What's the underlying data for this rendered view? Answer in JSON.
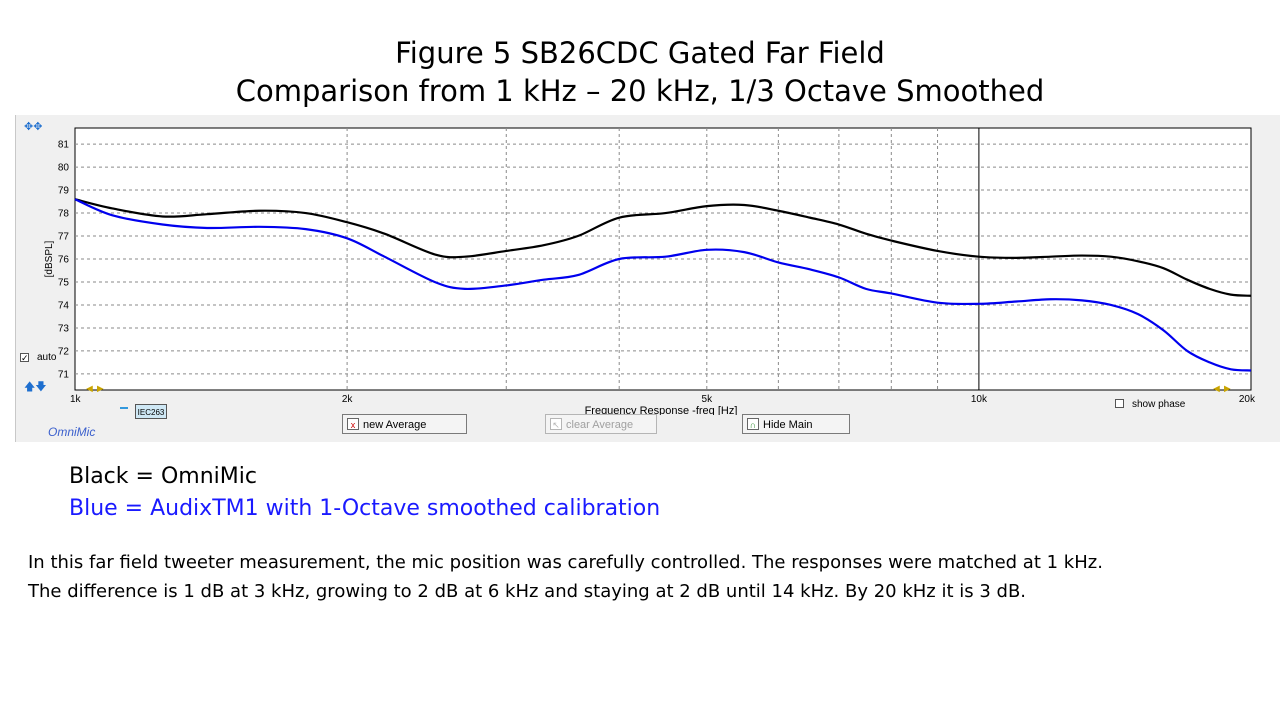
{
  "header": {
    "title_line1": "Figure 5   SB26CDC Gated Far Field",
    "title_line2": "Comparison from 1 kHz – 20 kHz, 1/3 Octave Smoothed"
  },
  "app": {
    "name": "OmniMic",
    "auto_label": "auto",
    "auto_checked": true,
    "show_phase_label": "show phase",
    "show_phase_checked": false,
    "channel_label": "IEC263",
    "buttons": {
      "new_average": "new Average",
      "clear_average": "clear Average",
      "hide_main": "Hide Main"
    }
  },
  "chart_data": {
    "type": "line",
    "xlabel": "Frequency Response -freq [Hz]",
    "ylabel": "[dBSPL]",
    "x_scale": "log",
    "xlim": [
      1000,
      20000
    ],
    "ylim": [
      70.3,
      81.7
    ],
    "x_ticks": [
      {
        "value": 1000,
        "label": "1k"
      },
      {
        "value": 2000,
        "label": "2k"
      },
      {
        "value": 5000,
        "label": "5k"
      },
      {
        "value": 10000,
        "label": "10k"
      },
      {
        "value": 20000,
        "label": "20k"
      }
    ],
    "y_ticks": [
      71,
      72,
      73,
      74,
      75,
      76,
      77,
      78,
      79,
      80,
      81
    ],
    "grid": true,
    "series": [
      {
        "color": "#000000",
        "x": [
          1000,
          1100,
          1250,
          1400,
          1600,
          1800,
          2000,
          2200,
          2500,
          2700,
          3000,
          3300,
          3600,
          4000,
          4500,
          5000,
          5500,
          6000,
          6500,
          7000,
          7500,
          8000,
          9000,
          10000,
          11000,
          12000,
          13000,
          14000,
          15000,
          16000,
          17000,
          18000,
          19000,
          20000
        ],
        "y": [
          78.6,
          78.2,
          77.85,
          77.95,
          78.1,
          78.0,
          77.6,
          77.1,
          76.2,
          76.1,
          76.35,
          76.6,
          77.0,
          77.8,
          78.0,
          78.3,
          78.35,
          78.1,
          77.8,
          77.5,
          77.1,
          76.8,
          76.35,
          76.1,
          76.05,
          76.1,
          76.15,
          76.1,
          75.9,
          75.6,
          75.1,
          74.7,
          74.45,
          74.4
        ]
      },
      {
        "color": "#0000ee",
        "x": [
          1000,
          1100,
          1250,
          1400,
          1600,
          1800,
          2000,
          2200,
          2500,
          2700,
          3000,
          3300,
          3600,
          4000,
          4500,
          5000,
          5500,
          6000,
          6500,
          7000,
          7500,
          8000,
          9000,
          10000,
          11000,
          12000,
          13000,
          14000,
          15000,
          16000,
          17000,
          18000,
          19000,
          20000
        ],
        "y": [
          78.6,
          77.9,
          77.5,
          77.35,
          77.4,
          77.3,
          76.9,
          76.1,
          75.0,
          74.7,
          74.85,
          75.1,
          75.3,
          76.0,
          76.1,
          76.4,
          76.3,
          75.85,
          75.55,
          75.2,
          74.7,
          74.5,
          74.1,
          74.05,
          74.15,
          74.25,
          74.2,
          74.0,
          73.6,
          72.9,
          72.0,
          71.5,
          71.2,
          71.15
        ]
      }
    ]
  },
  "legend": {
    "black": "Black = OmniMic",
    "blue": "Blue = AudixTM1 with 1-Octave smoothed calibration"
  },
  "body": {
    "para_line1": "In this far field tweeter measurement, the mic position was carefully controlled.  The responses were matched at 1 kHz.",
    "para_line2": "The difference is 1 dB at 3 kHz, growing to 2 dB at 6 kHz and staying at 2 dB until 14 kHz.  By 20 kHz it is 3 dB."
  }
}
